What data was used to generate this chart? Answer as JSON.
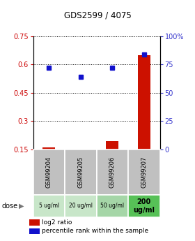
{
  "title": "GDS2599 / 4075",
  "samples": [
    "GSM99204",
    "GSM99205",
    "GSM99206",
    "GSM99207"
  ],
  "doses": [
    "5 ug/ml",
    "20 ug/ml",
    "50 ug/ml",
    "200\nug/ml"
  ],
  "log2_ratio": [
    0.162,
    0.15,
    0.195,
    0.648
  ],
  "percentile_rank": [
    72.0,
    64.0,
    72.0,
    84.0
  ],
  "left_ylim": [
    0.15,
    0.75
  ],
  "right_ylim": [
    0,
    100
  ],
  "left_yticks": [
    0.15,
    0.3,
    0.45,
    0.6,
    0.75
  ],
  "right_yticks": [
    0,
    25,
    50,
    75,
    100
  ],
  "right_yticklabels": [
    "0",
    "25",
    "50",
    "75",
    "100%"
  ],
  "left_color": "#cc0000",
  "right_color": "#3333cc",
  "bar_color": "#cc1100",
  "dot_color": "#1111cc",
  "bar_width": 0.4,
  "sample_bg_color": "#c0c0c0",
  "dose_colors": [
    "#c8e6c9",
    "#c8e6c9",
    "#a5d6a7",
    "#57c157"
  ],
  "legend_red_label": "log2 ratio",
  "legend_blue_label": "percentile rank within the sample",
  "background_color": "#ffffff"
}
